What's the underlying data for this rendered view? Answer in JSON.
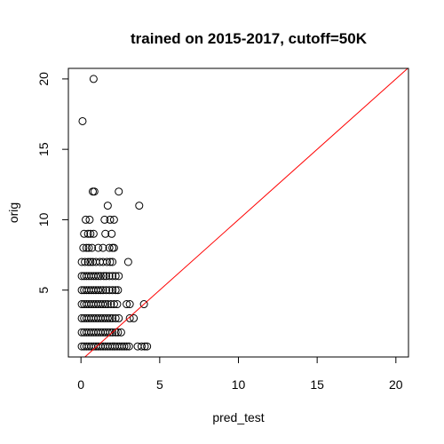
{
  "chart_data": {
    "type": "scatter",
    "title": "trained on 2015-2017, cutoff=50K",
    "xlabel": "pred_test",
    "ylabel": "orig",
    "xlim": [
      -0.8,
      20.8
    ],
    "ylim": [
      0.25,
      20.75
    ],
    "xticks": [
      0,
      5,
      10,
      15,
      20
    ],
    "yticks": [
      5,
      10,
      15,
      20
    ],
    "xtick_labels": [
      "0",
      "5",
      "10",
      "15",
      "20"
    ],
    "ytick_labels": [
      "5",
      "10",
      "15",
      "20"
    ],
    "grid": false,
    "legend": "none",
    "reference_line": {
      "slope": 1,
      "intercept": 0,
      "color": "#ff0000"
    },
    "point_color": "#000000",
    "series": [
      {
        "points": [
          [
            0.8,
            20
          ],
          [
            0.1,
            17
          ],
          [
            0.75,
            12
          ],
          [
            0.85,
            12
          ],
          [
            2.4,
            12
          ],
          [
            1.7,
            11
          ],
          [
            3.7,
            11
          ],
          [
            0.3,
            10
          ],
          [
            0.55,
            10
          ],
          [
            1.5,
            10
          ],
          [
            1.85,
            10
          ],
          [
            2.1,
            10
          ],
          [
            0.2,
            9
          ],
          [
            0.45,
            9
          ],
          [
            0.6,
            9
          ],
          [
            0.8,
            9
          ],
          [
            1.55,
            9
          ],
          [
            1.95,
            9
          ],
          [
            0.15,
            8
          ],
          [
            0.35,
            8
          ],
          [
            0.5,
            8
          ],
          [
            0.7,
            8
          ],
          [
            1.1,
            8
          ],
          [
            1.4,
            8
          ],
          [
            1.8,
            8
          ],
          [
            2.0,
            8
          ],
          [
            2.1,
            8
          ],
          [
            0.05,
            7
          ],
          [
            0.25,
            7
          ],
          [
            0.45,
            7
          ],
          [
            0.6,
            7
          ],
          [
            0.75,
            7
          ],
          [
            0.95,
            7
          ],
          [
            1.2,
            7
          ],
          [
            1.4,
            7
          ],
          [
            1.65,
            7
          ],
          [
            1.85,
            7
          ],
          [
            2.0,
            7
          ],
          [
            3.0,
            7
          ],
          [
            0.05,
            6
          ],
          [
            0.2,
            6
          ],
          [
            0.35,
            6
          ],
          [
            0.5,
            6
          ],
          [
            0.65,
            6
          ],
          [
            0.8,
            6
          ],
          [
            0.95,
            6
          ],
          [
            1.1,
            6
          ],
          [
            1.25,
            6
          ],
          [
            1.45,
            6
          ],
          [
            1.6,
            6
          ],
          [
            1.8,
            6
          ],
          [
            2.0,
            6
          ],
          [
            2.2,
            6
          ],
          [
            2.4,
            6
          ],
          [
            0.05,
            5
          ],
          [
            0.2,
            5
          ],
          [
            0.35,
            5
          ],
          [
            0.5,
            5
          ],
          [
            0.65,
            5
          ],
          [
            0.8,
            5
          ],
          [
            0.95,
            5
          ],
          [
            1.1,
            5
          ],
          [
            1.25,
            5
          ],
          [
            1.4,
            5
          ],
          [
            1.6,
            5
          ],
          [
            1.8,
            5
          ],
          [
            2.0,
            5
          ],
          [
            2.2,
            5
          ],
          [
            2.35,
            5
          ],
          [
            0.05,
            4
          ],
          [
            0.2,
            4
          ],
          [
            0.35,
            4
          ],
          [
            0.5,
            4
          ],
          [
            0.65,
            4
          ],
          [
            0.8,
            4
          ],
          [
            0.95,
            4
          ],
          [
            1.1,
            4
          ],
          [
            1.25,
            4
          ],
          [
            1.4,
            4
          ],
          [
            1.55,
            4
          ],
          [
            1.7,
            4
          ],
          [
            1.9,
            4
          ],
          [
            2.1,
            4
          ],
          [
            2.3,
            4
          ],
          [
            2.9,
            4
          ],
          [
            3.1,
            4
          ],
          [
            4.0,
            4
          ],
          [
            0.05,
            3
          ],
          [
            0.2,
            3
          ],
          [
            0.35,
            3
          ],
          [
            0.5,
            3
          ],
          [
            0.65,
            3
          ],
          [
            0.8,
            3
          ],
          [
            0.95,
            3
          ],
          [
            1.1,
            3
          ],
          [
            1.25,
            3
          ],
          [
            1.4,
            3
          ],
          [
            1.55,
            3
          ],
          [
            1.7,
            3
          ],
          [
            1.85,
            3
          ],
          [
            2.0,
            3
          ],
          [
            2.2,
            3
          ],
          [
            2.4,
            3
          ],
          [
            3.1,
            3
          ],
          [
            3.35,
            3
          ],
          [
            0.05,
            2
          ],
          [
            0.2,
            2
          ],
          [
            0.35,
            2
          ],
          [
            0.5,
            2
          ],
          [
            0.65,
            2
          ],
          [
            0.8,
            2
          ],
          [
            0.95,
            2
          ],
          [
            1.1,
            2
          ],
          [
            1.25,
            2
          ],
          [
            1.4,
            2
          ],
          [
            1.55,
            2
          ],
          [
            1.7,
            2
          ],
          [
            1.85,
            2
          ],
          [
            2.0,
            2
          ],
          [
            2.2,
            2
          ],
          [
            2.35,
            2
          ],
          [
            2.55,
            2
          ],
          [
            0.05,
            1
          ],
          [
            0.2,
            1
          ],
          [
            0.35,
            1
          ],
          [
            0.5,
            1
          ],
          [
            0.65,
            1
          ],
          [
            0.8,
            1
          ],
          [
            0.95,
            1
          ],
          [
            1.1,
            1
          ],
          [
            1.25,
            1
          ],
          [
            1.4,
            1
          ],
          [
            1.55,
            1
          ],
          [
            1.7,
            1
          ],
          [
            1.85,
            1
          ],
          [
            2.0,
            1
          ],
          [
            2.15,
            1
          ],
          [
            2.3,
            1
          ],
          [
            2.45,
            1
          ],
          [
            2.6,
            1
          ],
          [
            2.75,
            1
          ],
          [
            2.9,
            1
          ],
          [
            3.05,
            1
          ],
          [
            3.6,
            1
          ],
          [
            3.85,
            1
          ],
          [
            4.05,
            1
          ],
          [
            4.2,
            1
          ]
        ]
      }
    ]
  }
}
